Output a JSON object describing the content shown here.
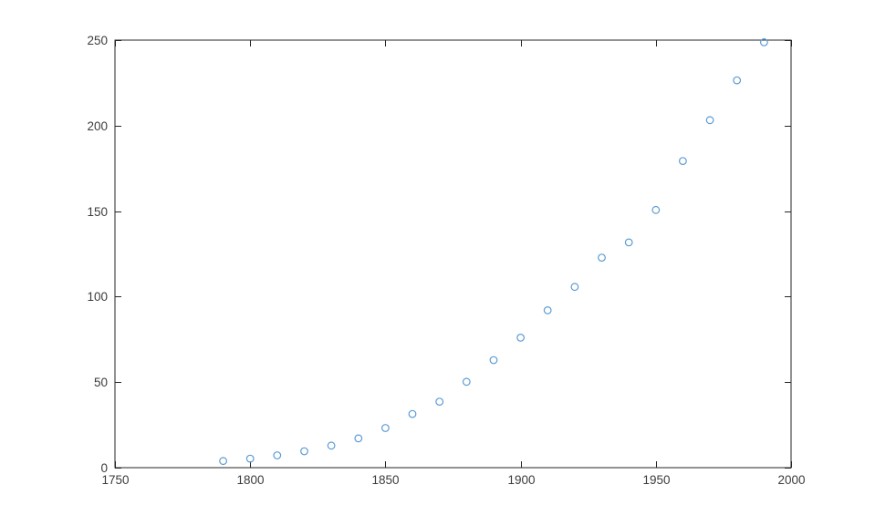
{
  "figure": {
    "background_color": "#ffffff",
    "axis_color": "#262626",
    "tick_label_color": "#3b3b3b"
  },
  "chart_data": {
    "type": "scatter",
    "title": "",
    "xlabel": "",
    "ylabel": "",
    "x": [
      1790,
      1800,
      1810,
      1820,
      1830,
      1840,
      1850,
      1860,
      1870,
      1880,
      1890,
      1900,
      1910,
      1920,
      1930,
      1940,
      1950,
      1960,
      1970,
      1980,
      1990
    ],
    "y": [
      3.9,
      5.3,
      7.2,
      9.6,
      12.9,
      17.1,
      23.2,
      31.4,
      38.6,
      50.2,
      62.9,
      76.0,
      92.0,
      105.7,
      122.8,
      131.7,
      150.7,
      179.3,
      203.2,
      226.5,
      248.7
    ],
    "xlim": [
      1750,
      2000
    ],
    "ylim": [
      0,
      250
    ],
    "xticks": [
      "1750",
      "1800",
      "1850",
      "1900",
      "1950",
      "2000"
    ],
    "yticks": [
      "0",
      "50",
      "100",
      "150",
      "200",
      "250"
    ],
    "grid": false,
    "legend": null,
    "marker": "open-circle",
    "marker_color": "#5b9bd5",
    "box": true,
    "tick_direction": "in"
  }
}
